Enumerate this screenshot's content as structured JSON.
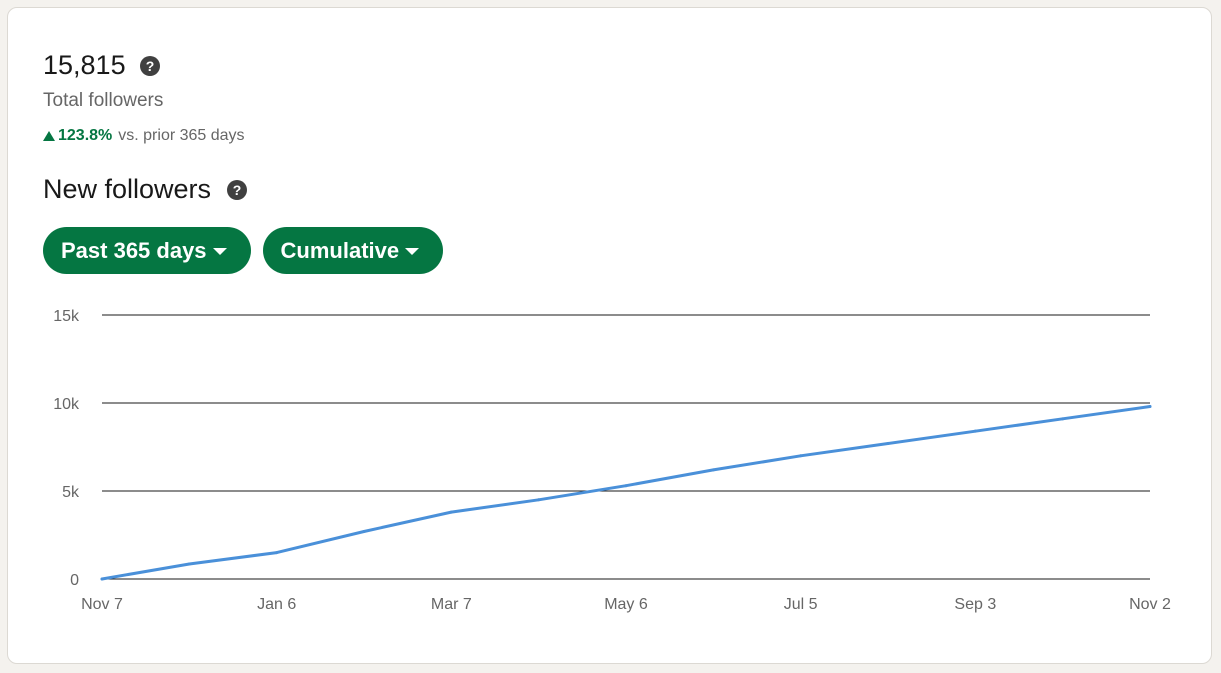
{
  "summary": {
    "total_value": "15,815",
    "total_label": "Total followers",
    "change_value": "123.8%",
    "change_suffix": "vs. prior 365 days"
  },
  "section": {
    "title": "New followers"
  },
  "filters": {
    "range_label": "Past 365 days",
    "mode_label": "Cumulative"
  },
  "icons": {
    "help": "question-circle-icon",
    "dropdown": "caret-down-icon",
    "trend": "triangle-up-icon"
  },
  "colors": {
    "accent": "#057642",
    "line": "#4a90d9",
    "grid": "#191919"
  },
  "chart_data": {
    "type": "line",
    "title": "",
    "xlabel": "",
    "ylabel": "",
    "ylim": [
      0,
      15000
    ],
    "y_ticks": [
      {
        "value": 0,
        "label": "0"
      },
      {
        "value": 5000,
        "label": "5k"
      },
      {
        "value": 10000,
        "label": "10k"
      },
      {
        "value": 15000,
        "label": "15k"
      }
    ],
    "x_ticks": [
      "Nov 7",
      "Jan 6",
      "Mar 7",
      "May 6",
      "Jul 5",
      "Sep 3",
      "Nov 2"
    ],
    "grid": true,
    "series": [
      {
        "x": [
          "Nov 7",
          "Dec 7",
          "Jan 6",
          "Feb 5",
          "Mar 7",
          "Apr 6",
          "May 6",
          "Jun 5",
          "Jul 5",
          "Aug 4",
          "Sep 3",
          "Oct 3",
          "Nov 2"
        ],
        "values": [
          0,
          850,
          1500,
          2700,
          3800,
          4500,
          5300,
          6200,
          7000,
          7700,
          8400,
          9100,
          9800
        ]
      }
    ]
  }
}
